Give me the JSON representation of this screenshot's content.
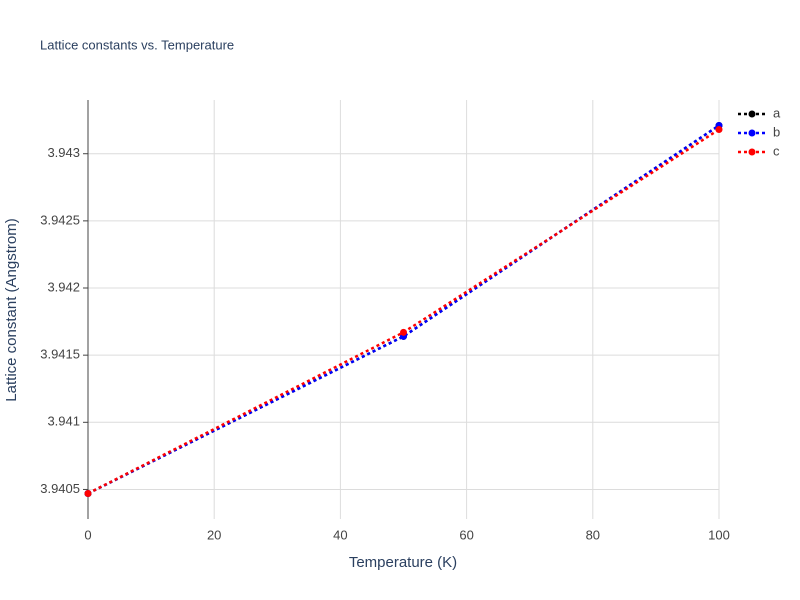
{
  "chart_data": {
    "type": "line",
    "title": "Lattice constants vs. Temperature",
    "x_label": "Temperature (K)",
    "y_label": "Lattice constant (Angstrom)",
    "x": [
      0,
      50,
      100
    ],
    "series": [
      {
        "name": "a",
        "color": "#000000",
        "values": [
          3.94047,
          3.94164,
          3.94321
        ]
      },
      {
        "name": "b",
        "color": "#0000ff",
        "values": [
          3.94047,
          3.94164,
          3.94321
        ]
      },
      {
        "name": "c",
        "color": "#ff0000",
        "values": [
          3.94047,
          3.94167,
          3.94318
        ]
      }
    ],
    "xlim": [
      0,
      100
    ],
    "xticks": [
      0,
      20,
      40,
      60,
      80,
      100
    ],
    "ylim": [
      3.94028,
      3.9434
    ],
    "yticks": [
      3.9405,
      3.941,
      3.9415,
      3.942,
      3.9425,
      3.943
    ],
    "grid": true
  }
}
